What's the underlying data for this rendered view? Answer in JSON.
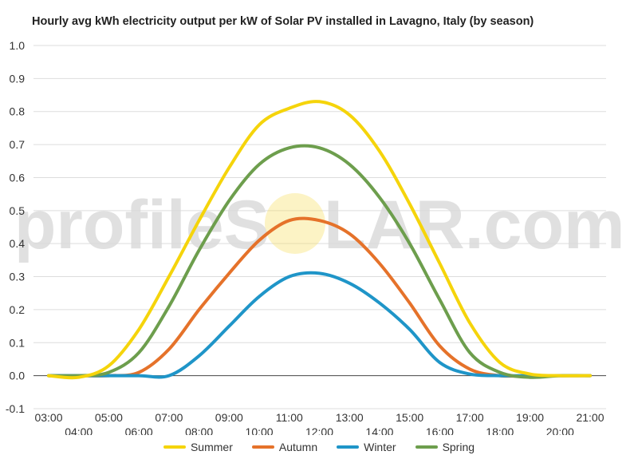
{
  "chart_data": {
    "type": "line",
    "title": "Hourly avg kWh electricity output per kW of Solar PV installed in Lavagno, Italy (by season)",
    "xlabel": "",
    "ylabel": "",
    "ylim": [
      -0.1,
      1.0
    ],
    "yticks": [
      "-0.1",
      "0.0",
      "0.1",
      "0.2",
      "0.3",
      "0.4",
      "0.5",
      "0.6",
      "0.7",
      "0.8",
      "0.9",
      "1.0"
    ],
    "grid": true,
    "legend": "bottom",
    "x": [
      "03:00",
      "04:00",
      "05:00",
      "06:00",
      "07:00",
      "08:00",
      "09:00",
      "10:00",
      "11:00",
      "12:00",
      "13:00",
      "14:00",
      "15:00",
      "16:00",
      "17:00",
      "18:00",
      "19:00",
      "20:00",
      "21:00"
    ],
    "series": [
      {
        "name": "Summer",
        "color": "#f5d40b",
        "values": [
          0.0,
          -0.005,
          0.03,
          0.14,
          0.3,
          0.47,
          0.63,
          0.76,
          0.81,
          0.83,
          0.79,
          0.68,
          0.52,
          0.34,
          0.16,
          0.04,
          0.005,
          0.0,
          0.0
        ]
      },
      {
        "name": "Autumn",
        "color": "#e5722a",
        "values": [
          0.0,
          0.0,
          0.0,
          0.01,
          0.08,
          0.2,
          0.31,
          0.41,
          0.47,
          0.47,
          0.43,
          0.34,
          0.22,
          0.09,
          0.02,
          0.0,
          0.0,
          0.0,
          0.0
        ]
      },
      {
        "name": "Winter",
        "color": "#1f95c8",
        "values": [
          0.0,
          0.0,
          0.0,
          0.0,
          0.0,
          0.06,
          0.15,
          0.24,
          0.3,
          0.31,
          0.28,
          0.22,
          0.14,
          0.04,
          0.005,
          0.0,
          0.0,
          0.0,
          0.0
        ]
      },
      {
        "name": "Spring",
        "color": "#6d9e4d",
        "values": [
          0.0,
          0.0,
          0.01,
          0.07,
          0.21,
          0.38,
          0.53,
          0.64,
          0.69,
          0.69,
          0.64,
          0.54,
          0.4,
          0.23,
          0.07,
          0.01,
          -0.005,
          0.0,
          0.0
        ]
      }
    ]
  },
  "watermark": {
    "left": "profileS",
    "right": "LAR.com",
    "sun_color": "#f7dd5a"
  }
}
